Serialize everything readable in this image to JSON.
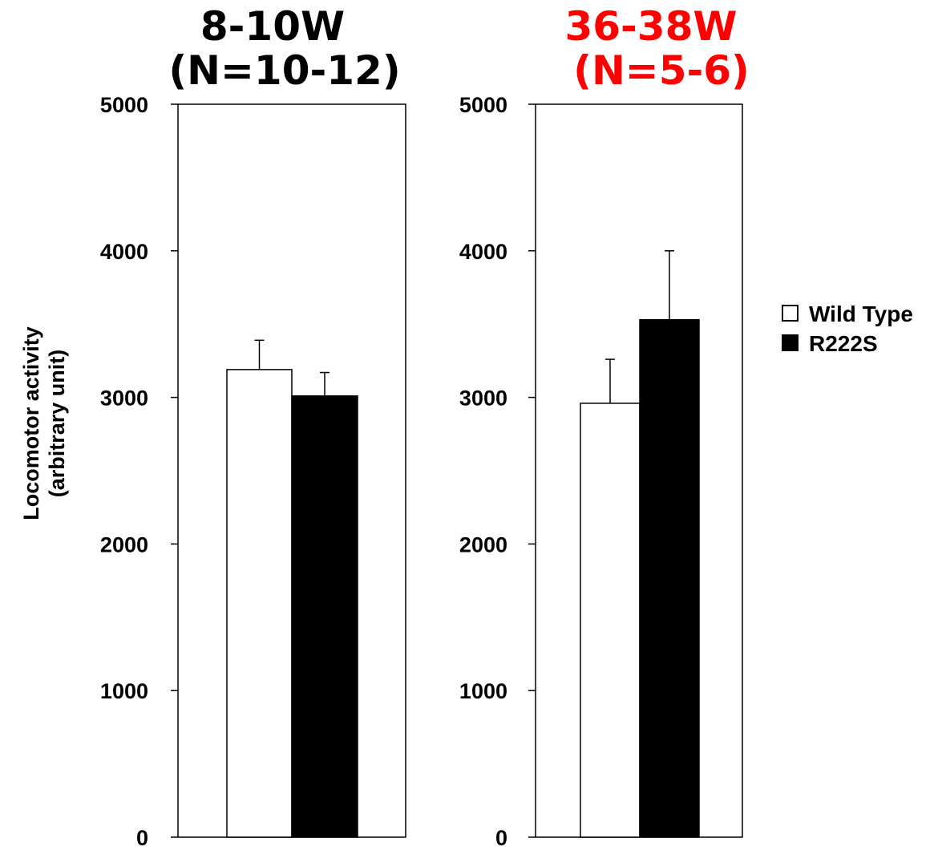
{
  "chart_data": {
    "type": "bar",
    "ylabel_line1": "Locomotor activity",
    "ylabel_line2": "(arbitrary unit)",
    "ylim": [
      0,
      5000
    ],
    "yticks": [
      "0",
      "1000",
      "2000",
      "3000",
      "4000",
      "5000"
    ],
    "legend": {
      "placement": "right",
      "items": [
        {
          "label": "Wild Type",
          "fill": "#ffffff"
        },
        {
          "label": "R222S",
          "fill": "#000000"
        }
      ]
    },
    "panels": [
      {
        "title_line1": "8-10W",
        "title_line2": "(N=10-12)",
        "title_color": "#000000",
        "series": [
          {
            "name": "Wild Type",
            "value": 3190,
            "error": 200,
            "fill": "#ffffff"
          },
          {
            "name": "R222S",
            "value": 3010,
            "error": 160,
            "fill": "#000000"
          }
        ]
      },
      {
        "title_line1": "36-38W",
        "title_line2": "(N=5-6)",
        "title_color": "#ff0000",
        "series": [
          {
            "name": "Wild Type",
            "value": 2960,
            "error": 300,
            "fill": "#ffffff"
          },
          {
            "name": "R222S",
            "value": 3530,
            "error": 470,
            "fill": "#000000"
          }
        ]
      }
    ]
  }
}
